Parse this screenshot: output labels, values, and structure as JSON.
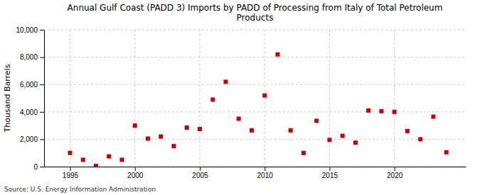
{
  "chart_data": {
    "type": "scatter",
    "title": "Annual Gulf Coast (PADD 3) Imports by PADD of Processing from Italy of Total Petroleum\nProducts",
    "ylabel": "Thousand Barrels",
    "annotations": [
      "Source: U.S. Energy Information Administration"
    ],
    "x": [
      1995,
      1996,
      1997,
      1998,
      1999,
      2000,
      2001,
      2002,
      2003,
      2004,
      2005,
      2006,
      2007,
      2008,
      2009,
      2010,
      2011,
      2012,
      2013,
      2014,
      2015,
      2016,
      2017,
      2018,
      2019,
      2020,
      2021,
      2022,
      2023,
      2024
    ],
    "values": [
      1000,
      500,
      50,
      750,
      500,
      3000,
      2050,
      2200,
      1500,
      2850,
      2750,
      4900,
      6200,
      3500,
      2650,
      5200,
      8200,
      2650,
      1000,
      3350,
      1950,
      2250,
      1750,
      4100,
      4050,
      4000,
      2600,
      2000,
      3650,
      1050
    ],
    "color": "#cc0000",
    "marker": "square",
    "xlim": [
      1993,
      2025.5
    ],
    "ylim": [
      0,
      10000
    ],
    "xticks": [
      1995,
      2000,
      2005,
      2010,
      2015,
      2020
    ],
    "yticks": [
      0,
      {
        "value": 2000,
        "label": "2,000"
      },
      {
        "value": 4000,
        "label": "4,000"
      },
      {
        "value": 6000,
        "label": "6,000"
      },
      {
        "value": 8000,
        "label": "8,000"
      },
      {
        "value": 10000,
        "label": "10,000"
      }
    ],
    "grid": true
  }
}
